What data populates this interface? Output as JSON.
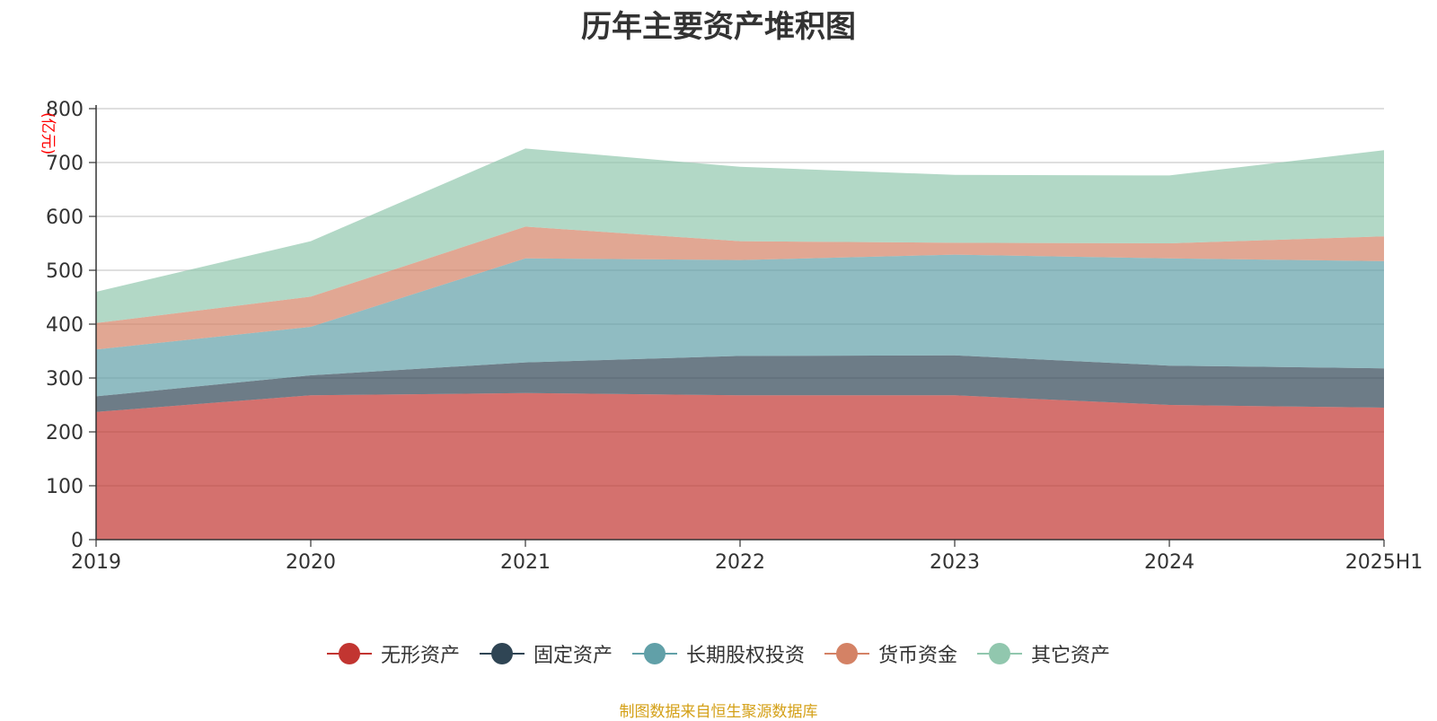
{
  "chart_data": {
    "type": "area",
    "stacked": true,
    "title": "历年主要资产堆积图",
    "ylabel": "(亿元)",
    "xlabel": "",
    "ylim": [
      0,
      800
    ],
    "yticks": [
      0,
      100,
      200,
      300,
      400,
      500,
      600,
      700,
      800
    ],
    "categories": [
      "2019",
      "2020",
      "2021",
      "2022",
      "2023",
      "2024",
      "2025H1"
    ],
    "series": [
      {
        "name": "无形资产",
        "color": "#c23531",
        "values": [
          237,
          268,
          272,
          268,
          268,
          250,
          245
        ]
      },
      {
        "name": "固定资产",
        "color": "#2f4554",
        "values": [
          29,
          37,
          57,
          73,
          74,
          73,
          73
        ]
      },
      {
        "name": "长期股权投资",
        "color": "#61a0a8",
        "values": [
          87,
          90,
          193,
          178,
          187,
          199,
          199
        ]
      },
      {
        "name": "货币资金",
        "color": "#d48265",
        "values": [
          49,
          56,
          59,
          35,
          22,
          28,
          46
        ]
      },
      {
        "name": "其它资产",
        "color": "#91c7ae",
        "values": [
          58,
          103,
          145,
          138,
          126,
          126,
          160
        ]
      }
    ],
    "grid": true,
    "legend_position": "bottom-center"
  },
  "source_note": "制图数据来自恒生聚源数据库"
}
